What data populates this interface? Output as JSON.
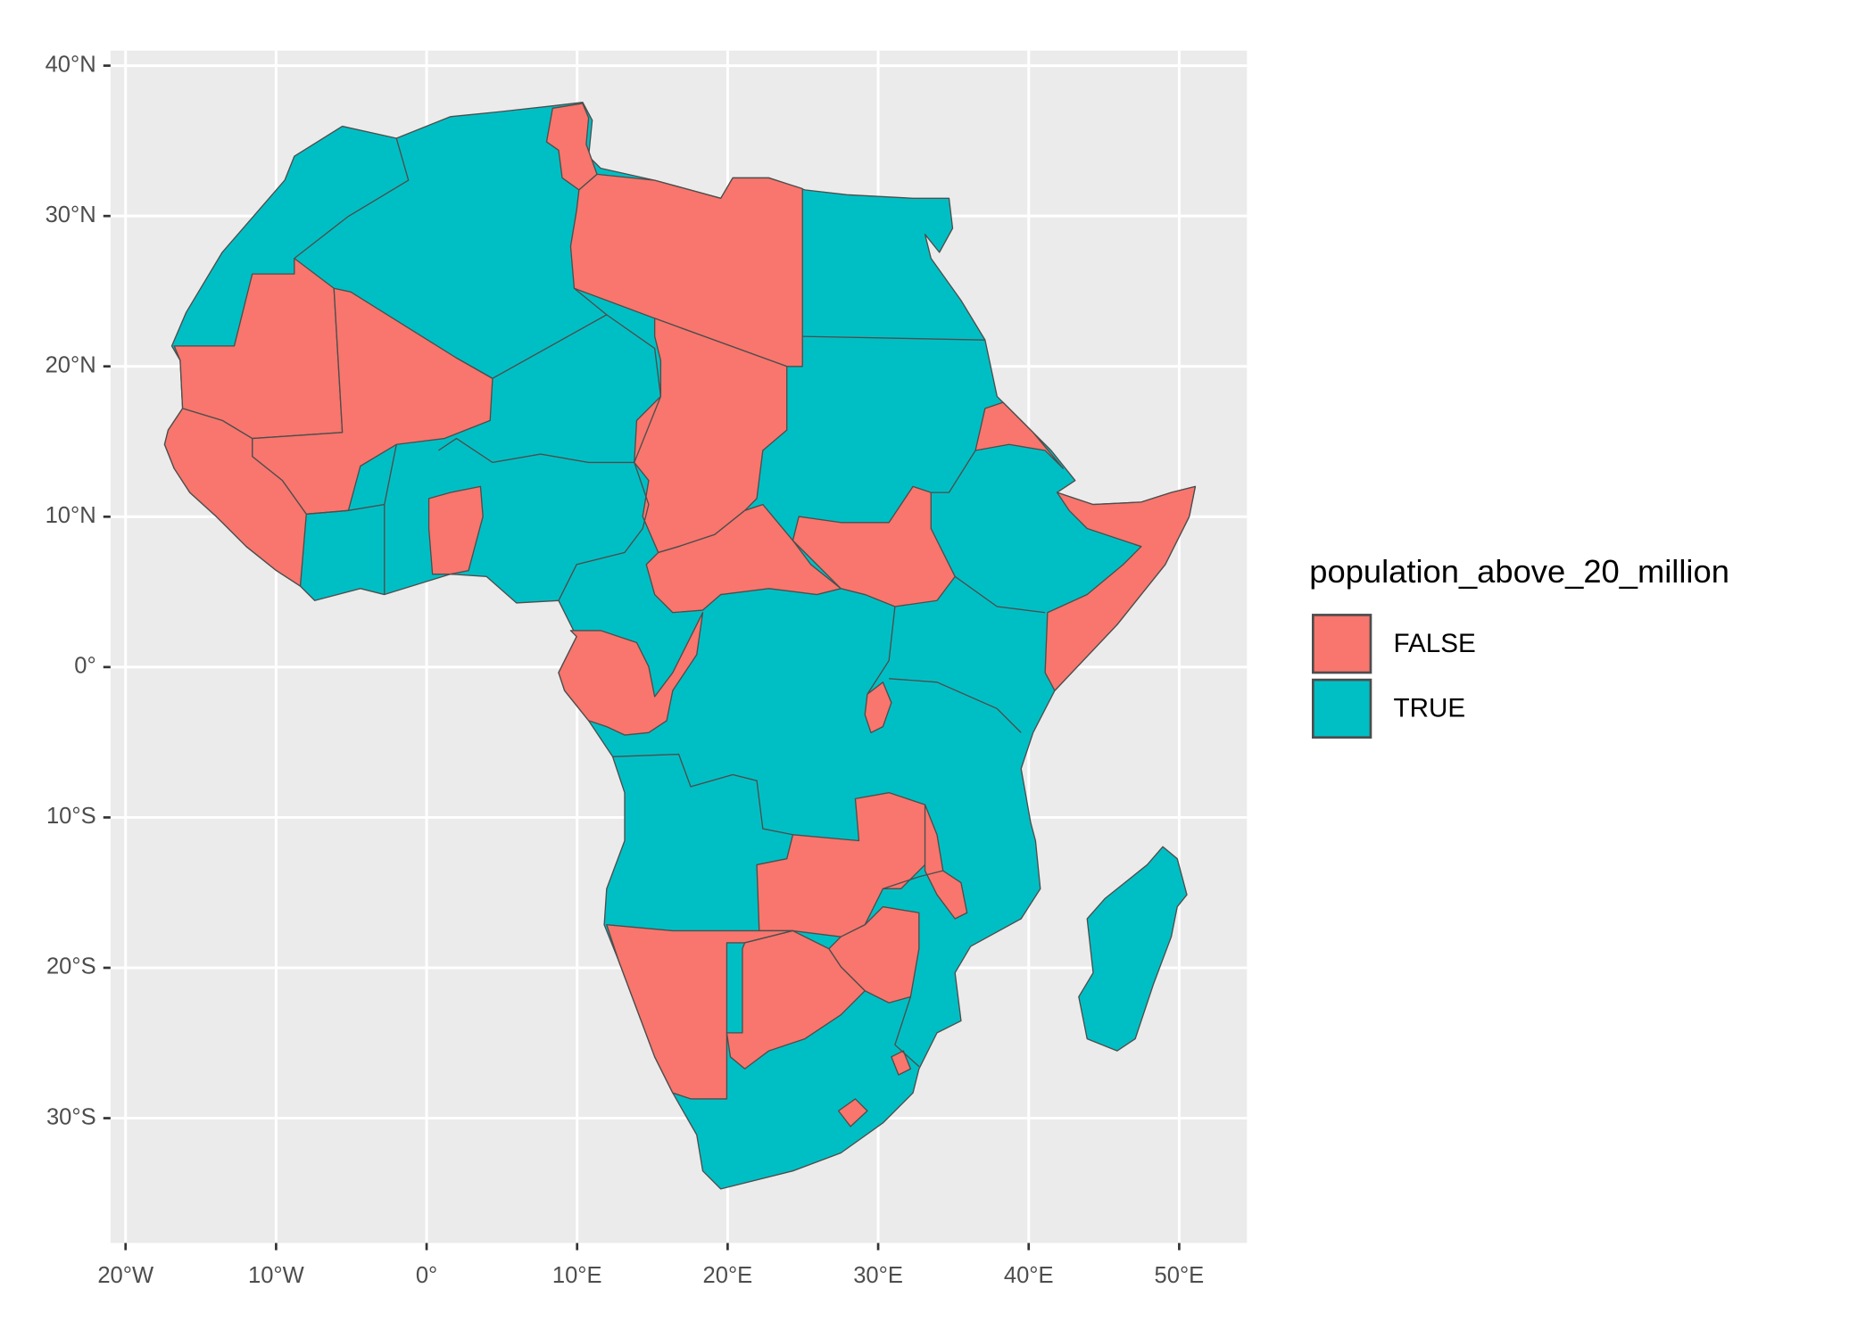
{
  "chart_data": {
    "type": "map",
    "xlim": [
      -21,
      54.5
    ],
    "ylim": [
      -38.3,
      41
    ],
    "xticks": [
      {
        "value": -20,
        "label": "20°W"
      },
      {
        "value": -10,
        "label": "10°W"
      },
      {
        "value": 0,
        "label": "0°"
      },
      {
        "value": 10,
        "label": "10°E"
      },
      {
        "value": 20,
        "label": "20°E"
      },
      {
        "value": 30,
        "label": "30°E"
      },
      {
        "value": 40,
        "label": "40°E"
      },
      {
        "value": 50,
        "label": "50°E"
      }
    ],
    "yticks": [
      {
        "value": -30,
        "label": "30°S"
      },
      {
        "value": -20,
        "label": "20°S"
      },
      {
        "value": -10,
        "label": "10°S"
      },
      {
        "value": 0,
        "label": "0°"
      },
      {
        "value": 10,
        "label": "10°N"
      },
      {
        "value": 20,
        "label": "20°N"
      },
      {
        "value": 30,
        "label": "30°N"
      },
      {
        "value": 40,
        "label": "40°N"
      }
    ],
    "grid": true,
    "legend": {
      "title": "population_above_20_million",
      "entries": [
        {
          "name": "FALSE",
          "color": "#F8766D"
        },
        {
          "name": "TRUE",
          "color": "#00BFC4"
        }
      ]
    }
  }
}
